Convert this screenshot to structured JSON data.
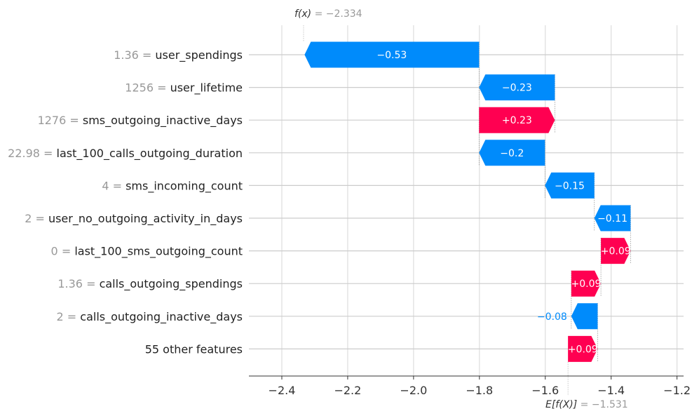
{
  "chart_data": {
    "type": "waterfall",
    "title": "",
    "xlabel": "",
    "ylabel": "",
    "xlim": [
      -2.5,
      -1.18
    ],
    "x_ticks": [
      -2.4,
      -2.2,
      -2.0,
      -1.8,
      -1.6,
      -1.4,
      -1.2
    ],
    "x_tick_labels": [
      "−2.4",
      "−2.2",
      "−2.0",
      "−1.8",
      "−1.6",
      "−1.4",
      "−1.2"
    ],
    "fx": {
      "label": "f(x)",
      "equals": " = ",
      "value_text": "−2.334",
      "value": -2.334
    },
    "base": {
      "label": "E[f(X)]",
      "equals": " = ",
      "value_text": "−1.531",
      "value": -1.531
    },
    "colors": {
      "positive": "#ff0051",
      "negative": "#008bfb"
    },
    "features": [
      {
        "value": "1.36",
        "name": "user_spendings",
        "contribution": -0.53,
        "label": "−0.53"
      },
      {
        "value": "1256",
        "name": "user_lifetime",
        "contribution": -0.23,
        "label": "−0.23"
      },
      {
        "value": "1276",
        "name": "sms_outgoing_inactive_days",
        "contribution": 0.23,
        "label": "+0.23"
      },
      {
        "value": "22.98",
        "name": "last_100_calls_outgoing_duration",
        "contribution": -0.2,
        "label": "−0.2"
      },
      {
        "value": "4",
        "name": "sms_incoming_count",
        "contribution": -0.15,
        "label": "−0.15"
      },
      {
        "value": "2",
        "name": "user_no_outgoing_activity_in_days",
        "contribution": -0.11,
        "label": "−0.11"
      },
      {
        "value": "0",
        "name": "last_100_sms_outgoing_count",
        "contribution": 0.09,
        "label": "+0.09"
      },
      {
        "value": "1.36",
        "name": "calls_outgoing_spendings",
        "contribution": 0.09,
        "label": "+0.09"
      },
      {
        "value": "2",
        "name": "calls_outgoing_inactive_days",
        "contribution": -0.08,
        "label": "−0.08"
      },
      {
        "value": "",
        "name": "55 other features",
        "contribution": 0.09,
        "label": "+0.09"
      }
    ]
  }
}
